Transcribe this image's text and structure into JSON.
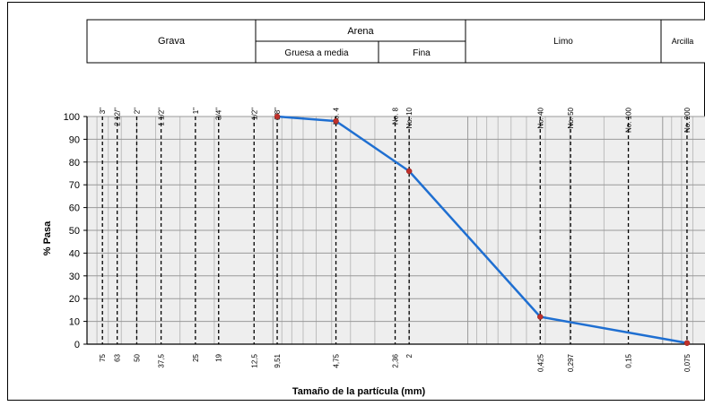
{
  "header": {
    "grava": "Grava",
    "arena": "Arena",
    "gruesa": "Gruesa a media",
    "fina": "Fina",
    "limo": "Limo",
    "arcilla": "Arcilla"
  },
  "colors": {
    "line": "#1f6fd1",
    "marker": "#c0302a",
    "plot_bg": "#eeeeee",
    "grid": "#aaaaaa"
  },
  "chart_data": {
    "type": "line",
    "xscale": "log",
    "xlim": [
      0.06,
      90
    ],
    "ylim": [
      0,
      100
    ],
    "xlabel": "Tamaño de la partícula (mm)",
    "ylabel": "% Pasa",
    "yticks": [
      "0",
      "10",
      "20",
      "30",
      "40",
      "50",
      "60",
      "70",
      "80",
      "90",
      "100"
    ],
    "sieves": [
      {
        "name": "3\"",
        "size": 75,
        "label": "75"
      },
      {
        "name": "2 12/\"",
        "size": 63,
        "label": "63"
      },
      {
        "name": "2\"",
        "size": 50,
        "label": "50"
      },
      {
        "name": "1 1/2\"",
        "size": 37.5,
        "label": "37,5"
      },
      {
        "name": "1\"",
        "size": 25,
        "label": "25"
      },
      {
        "name": "3/4\"",
        "size": 19,
        "label": "19"
      },
      {
        "name": "1/2\"",
        "size": 12.5,
        "label": "12,5"
      },
      {
        "name": "3/8\"",
        "size": 9.51,
        "label": "9,51"
      },
      {
        "name": "No. 4",
        "size": 4.75,
        "label": "4,75"
      },
      {
        "name": "No. 8",
        "size": 2.36,
        "label": "2,36"
      },
      {
        "name": "No. 10",
        "size": 2,
        "label": "2"
      },
      {
        "name": "No. 40",
        "size": 0.425,
        "label": "0,425"
      },
      {
        "name": "No. 50",
        "size": 0.297,
        "label": "0,297"
      },
      {
        "name": "No. 100",
        "size": 0.15,
        "label": "0,15"
      },
      {
        "name": "No. 200",
        "size": 0.075,
        "label": "0,075"
      }
    ],
    "series": [
      {
        "x": [
          9.51,
          4.75,
          2,
          0.425,
          0.075
        ],
        "y": [
          100,
          98,
          76,
          12,
          0.5
        ]
      }
    ],
    "grid": true
  }
}
